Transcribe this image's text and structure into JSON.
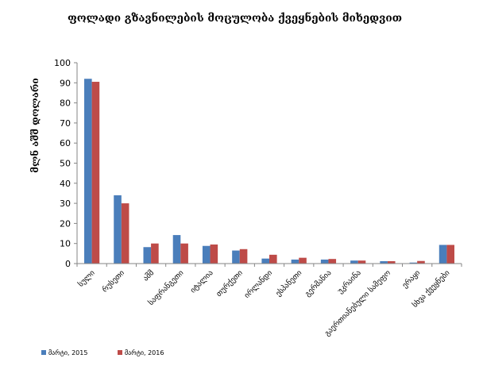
{
  "chart_data": {
    "type": "bar",
    "title": "ფოლადი გზავნილების მოცულობა ქვეყნების მიხედვით",
    "xlabel": "",
    "ylabel": "მლნ აშშ დოლარი",
    "ylim": [
      0,
      100
    ],
    "yticks": [
      0,
      10,
      20,
      30,
      40,
      50,
      60,
      70,
      80,
      90,
      100
    ],
    "categories": [
      "სული",
      "რუსეთი",
      "აშშ",
      "საფრანგეთი",
      "იტალია",
      "თურქეთი",
      "ირლანდი",
      "ესპანეთი",
      "გერმანია",
      "უკრაინა",
      "გაერთიანებული სამეფო",
      "ერაყი",
      "სხვა ქვეყნები"
    ],
    "series": [
      {
        "name": "მარტი, 2015",
        "color": "#4a7ebb",
        "values": [
          92,
          34,
          8.2,
          14.2,
          8.8,
          6.5,
          2.5,
          2.0,
          2.0,
          1.5,
          1.2,
          0.5,
          9.3
        ]
      },
      {
        "name": "მარტი, 2016",
        "color": "#be4b48",
        "values": [
          90.5,
          30,
          10,
          10,
          9.5,
          7.2,
          4.4,
          2.9,
          2.3,
          1.5,
          1.2,
          1.3,
          9.3
        ]
      }
    ],
    "grid": false,
    "legend": "bottom-left"
  }
}
